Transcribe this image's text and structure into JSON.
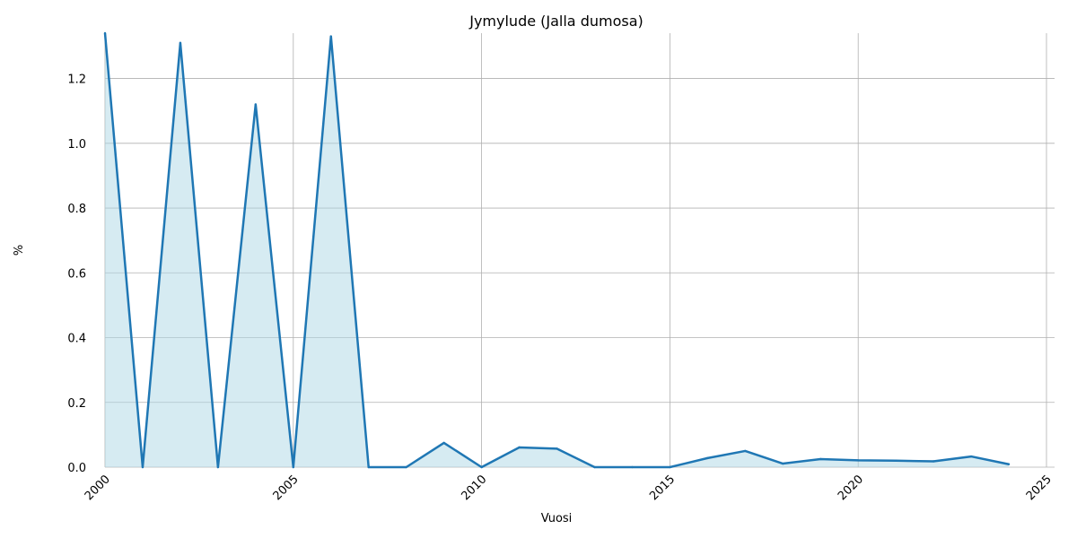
{
  "chart_data": {
    "type": "area",
    "title": "Jymylude (Jalla dumosa)",
    "xlabel": "Vuosi",
    "ylabel": "%",
    "xlim": [
      2000,
      2025
    ],
    "ylim": [
      0,
      1.34
    ],
    "xticks": [
      2000,
      2005,
      2010,
      2015,
      2020,
      2025
    ],
    "yticks": [
      0.0,
      0.2,
      0.4,
      0.6,
      0.8,
      1.0,
      1.2
    ],
    "ytick_labels": [
      "0.0",
      "0.2",
      "0.4",
      "0.6",
      "0.8",
      "1.0",
      "1.2"
    ],
    "grid": true,
    "colors": {
      "line": "#1f77b4",
      "fill": "#add8e6",
      "grid": "#b0b0b0"
    },
    "series": [
      {
        "x": [
          2000,
          2001,
          2002,
          2003,
          2004,
          2005,
          2006,
          2007,
          2008,
          2009,
          2010,
          2011,
          2012,
          2013,
          2014,
          2015,
          2016,
          2017,
          2018,
          2019,
          2020,
          2021,
          2022,
          2023,
          2024
        ],
        "values": [
          1.34,
          0.0,
          1.31,
          0.0,
          1.12,
          0.0,
          1.33,
          0.0,
          0.0,
          0.075,
          0.0,
          0.061,
          0.057,
          0.0,
          0.0,
          0.0,
          0.028,
          0.05,
          0.011,
          0.025,
          0.021,
          0.02,
          0.018,
          0.033,
          0.009
        ]
      }
    ]
  }
}
